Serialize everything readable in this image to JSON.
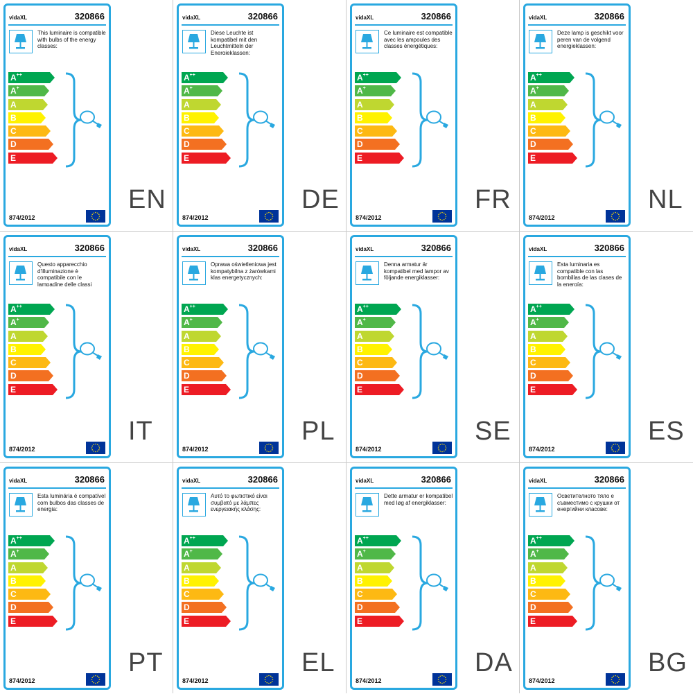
{
  "brand": "vidaXL",
  "product_code": "320866",
  "regulation": "874/2012",
  "icons": {
    "lamp": "table-lamp-icon",
    "bulb": "bulb-icon",
    "flag": "eu-flag-icon"
  },
  "colors": {
    "frame": "#29a8e0",
    "app": "#00a651",
    "a_plus": "#50b848",
    "a": "#bfd730",
    "b": "#fff200",
    "c": "#fdb913",
    "d": "#f37021",
    "e": "#ed1c24"
  },
  "energy_classes": [
    {
      "letter": "A",
      "sup": "++",
      "color": "#00a651"
    },
    {
      "letter": "A",
      "sup": "+",
      "color": "#50b848"
    },
    {
      "letter": "A",
      "sup": "",
      "color": "#bfd730"
    },
    {
      "letter": "B",
      "sup": "",
      "color": "#fff200"
    },
    {
      "letter": "C",
      "sup": "",
      "color": "#fdb913"
    },
    {
      "letter": "D",
      "sup": "",
      "color": "#f37021"
    },
    {
      "letter": "E",
      "sup": "",
      "color": "#ed1c24"
    }
  ],
  "panels": [
    {
      "lang": "EN",
      "text": "This luminaire is compatible with bulbs of the energy classes:"
    },
    {
      "lang": "DE",
      "text": "Diese Leuchte ist kompatibel mit den Leuchtmitteln der Energieklassen:"
    },
    {
      "lang": "FR",
      "text": "Ce luminaire est compatible avec les ampoules des classes énergétiques:"
    },
    {
      "lang": "NL",
      "text": "Deze lamp is geschikt voor peren van de volgend energieklassen:"
    },
    {
      "lang": "IT",
      "text": "Questo apparecchio d'illuminazione è compatibile con le lampadine delle classi energetiche:"
    },
    {
      "lang": "PL",
      "text": "Oprawa oświetleniowa jest kompatybilna z żarówkami klas energetycznych:"
    },
    {
      "lang": "SE",
      "text": "Denna armatur är kompatibel med lampor av följande energiklasser:"
    },
    {
      "lang": "ES",
      "text": "Esta luminaria es compatible con las bombillas de las clases de la energía:"
    },
    {
      "lang": "PT",
      "text": "Esta luminária é compatível com bulbos das classes de energia:"
    },
    {
      "lang": "EL",
      "text": "Αυτό το φωτιστικό είναι συμβατό με λάμπες ενεργειακής κλάσης:"
    },
    {
      "lang": "DA",
      "text": "Dette armatur er kompatibel med løg af energiklasser:"
    },
    {
      "lang": "BG",
      "text": "Осветителното тяло е съвместимо с крушки от енергийни класове:"
    }
  ]
}
